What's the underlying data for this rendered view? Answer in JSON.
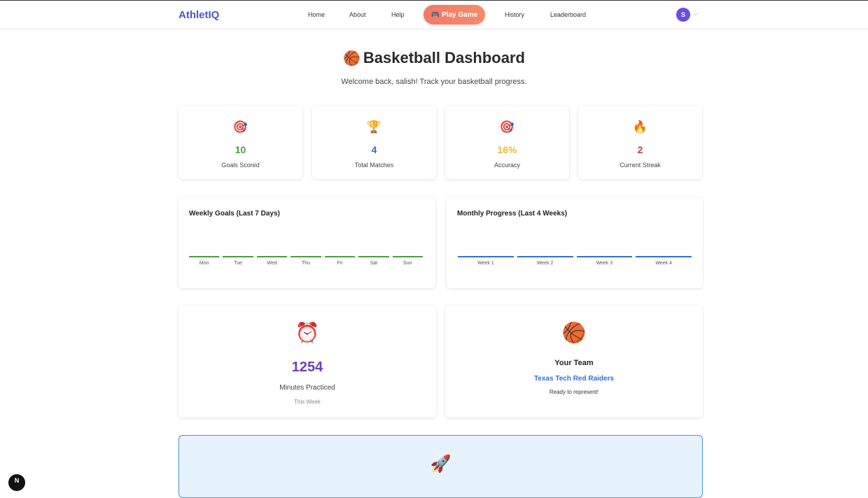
{
  "header": {
    "logo": "AthletIQ",
    "nav": [
      {
        "label": "Home"
      },
      {
        "label": "About"
      },
      {
        "label": "Help"
      },
      {
        "label": "History"
      },
      {
        "label": "Leaderboard"
      }
    ],
    "play_button": {
      "icon": "🎮",
      "label": "Play Game"
    },
    "avatar_initial": "S",
    "avatar_color": "#6a4de6",
    "accent_color": "#4a55c9"
  },
  "page": {
    "title_icon": "🏀",
    "title": "Basketball Dashboard",
    "subtitle": "Welcome back, salish! Track your basketball progress."
  },
  "stats": [
    {
      "icon": "🎯",
      "value": "10",
      "label": "Goals Scored",
      "color": "#4a9e3c"
    },
    {
      "icon": "🏆",
      "value": "4",
      "label": "Total Matches",
      "color": "#2f6fe0"
    },
    {
      "icon": "🎯",
      "value": "16%",
      "label": "Accuracy",
      "color": "#f2b632"
    },
    {
      "icon": "🔥",
      "value": "2",
      "label": "Current Streak",
      "color": "#d43b3b"
    }
  ],
  "weekly_chart": {
    "title": "Weekly Goals (Last 7 Days)",
    "days": [
      "Mon",
      "Tue",
      "Wed",
      "Thu",
      "Fri",
      "Sat",
      "Sun"
    ],
    "color": "#4a9e3c"
  },
  "monthly_chart": {
    "title": "Monthly Progress (Last 4 Weeks)",
    "weeks": [
      "Week 1",
      "Week 2",
      "Week 3",
      "Week 4"
    ],
    "color": "#2f6fe0"
  },
  "practice": {
    "icon": "⏰",
    "minutes": "1254",
    "label": "Minutes Practiced",
    "period": "This Week"
  },
  "team": {
    "icon": "🏀",
    "heading": "Your Team",
    "name": "Texas Tech Red Raiders",
    "tagline": "Ready to represent!"
  },
  "promo": {
    "icon": "🚀"
  },
  "corner_badge": "N"
}
